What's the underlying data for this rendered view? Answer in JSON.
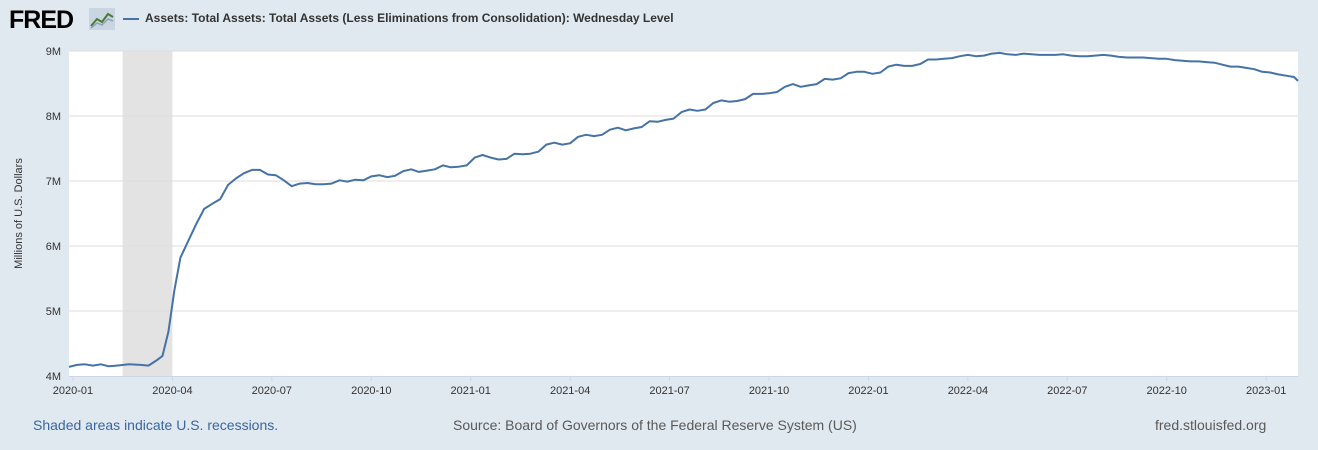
{
  "header": {
    "logo_text": "FRED",
    "logo_icon": "chart-line-icon",
    "legend_label": "Assets: Total Assets: Total Assets (Less Eliminations from Consolidation): Wednesday Level"
  },
  "footer": {
    "recession_note": "Shaded areas indicate U.S. recessions.",
    "source": "Source: Board of Governors of the Federal Reserve System (US)",
    "site": "fred.stlouisfed.org"
  },
  "colors": {
    "series": "#4572a7",
    "recession": "#e3e3e3",
    "background": "#e1e9f0",
    "plot": "#ffffff",
    "grid": "#dddddd"
  },
  "chart_data": {
    "type": "line",
    "title": "Assets: Total Assets: Total Assets (Less Eliminations from Consolidation): Wednesday Level",
    "xlabel": "",
    "ylabel": "Millions of U.S. Dollars",
    "ylim": [
      4,
      9
    ],
    "xlim": [
      2019.99,
      2023.08
    ],
    "grid": true,
    "yticks": [
      {
        "value": 4,
        "label": "4M"
      },
      {
        "value": 5,
        "label": "5M"
      },
      {
        "value": 6,
        "label": "6M"
      },
      {
        "value": 7,
        "label": "7M"
      },
      {
        "value": 8,
        "label": "8M"
      },
      {
        "value": 9,
        "label": "9M"
      }
    ],
    "xticks": [
      {
        "value": 2020.0,
        "label": "2020-01"
      },
      {
        "value": 2020.25,
        "label": "2020-04"
      },
      {
        "value": 2020.5,
        "label": "2020-07"
      },
      {
        "value": 2020.75,
        "label": "2020-10"
      },
      {
        "value": 2021.0,
        "label": "2021-01"
      },
      {
        "value": 2021.25,
        "label": "2021-04"
      },
      {
        "value": 2021.5,
        "label": "2021-07"
      },
      {
        "value": 2021.75,
        "label": "2021-10"
      },
      {
        "value": 2022.0,
        "label": "2022-01"
      },
      {
        "value": 2022.25,
        "label": "2022-04"
      },
      {
        "value": 2022.5,
        "label": "2022-07"
      },
      {
        "value": 2022.75,
        "label": "2022-10"
      },
      {
        "value": 2023.0,
        "label": "2023-01"
      }
    ],
    "recessions": [
      {
        "start": 2020.125,
        "end": 2020.25
      }
    ],
    "series": [
      {
        "name": "Assets: Total Assets: Total Assets (Less Eliminations from Consolidation): Wednesday Level",
        "points": [
          [
            2019.99,
            4.14
          ],
          [
            2020.01,
            4.17
          ],
          [
            2020.03,
            4.18
          ],
          [
            2020.05,
            4.16
          ],
          [
            2020.07,
            4.18
          ],
          [
            2020.09,
            4.15
          ],
          [
            2020.11,
            4.16
          ],
          [
            2020.14,
            4.18
          ],
          [
            2020.17,
            4.17
          ],
          [
            2020.19,
            4.16
          ],
          [
            2020.21,
            4.24
          ],
          [
            2020.225,
            4.31
          ],
          [
            2020.24,
            4.68
          ],
          [
            2020.255,
            5.32
          ],
          [
            2020.27,
            5.82
          ],
          [
            2020.29,
            6.08
          ],
          [
            2020.31,
            6.34
          ],
          [
            2020.33,
            6.57
          ],
          [
            2020.35,
            6.65
          ],
          [
            2020.37,
            6.72
          ],
          [
            2020.39,
            6.94
          ],
          [
            2020.41,
            7.04
          ],
          [
            2020.43,
            7.12
          ],
          [
            2020.45,
            7.17
          ],
          [
            2020.47,
            7.17
          ],
          [
            2020.49,
            7.1
          ],
          [
            2020.51,
            7.09
          ],
          [
            2020.53,
            7.01
          ],
          [
            2020.55,
            6.92
          ],
          [
            2020.57,
            6.96
          ],
          [
            2020.59,
            6.97
          ],
          [
            2020.61,
            6.95
          ],
          [
            2020.63,
            6.95
          ],
          [
            2020.65,
            6.96
          ],
          [
            2020.67,
            7.01
          ],
          [
            2020.69,
            6.99
          ],
          [
            2020.71,
            7.02
          ],
          [
            2020.73,
            7.01
          ],
          [
            2020.75,
            7.07
          ],
          [
            2020.77,
            7.09
          ],
          [
            2020.79,
            7.06
          ],
          [
            2020.81,
            7.08
          ],
          [
            2020.83,
            7.15
          ],
          [
            2020.85,
            7.18
          ],
          [
            2020.87,
            7.14
          ],
          [
            2020.89,
            7.16
          ],
          [
            2020.91,
            7.18
          ],
          [
            2020.93,
            7.24
          ],
          [
            2020.95,
            7.21
          ],
          [
            2020.97,
            7.22
          ],
          [
            2020.99,
            7.24
          ],
          [
            2021.01,
            7.36
          ],
          [
            2021.03,
            7.4
          ],
          [
            2021.05,
            7.36
          ],
          [
            2021.07,
            7.33
          ],
          [
            2021.09,
            7.34
          ],
          [
            2021.11,
            7.42
          ],
          [
            2021.13,
            7.41
          ],
          [
            2021.15,
            7.42
          ],
          [
            2021.17,
            7.45
          ],
          [
            2021.19,
            7.56
          ],
          [
            2021.21,
            7.59
          ],
          [
            2021.23,
            7.56
          ],
          [
            2021.25,
            7.58
          ],
          [
            2021.27,
            7.68
          ],
          [
            2021.29,
            7.71
          ],
          [
            2021.31,
            7.69
          ],
          [
            2021.33,
            7.71
          ],
          [
            2021.35,
            7.79
          ],
          [
            2021.37,
            7.82
          ],
          [
            2021.39,
            7.78
          ],
          [
            2021.41,
            7.81
          ],
          [
            2021.43,
            7.83
          ],
          [
            2021.45,
            7.92
          ],
          [
            2021.47,
            7.91
          ],
          [
            2021.49,
            7.94
          ],
          [
            2021.51,
            7.96
          ],
          [
            2021.53,
            8.06
          ],
          [
            2021.55,
            8.1
          ],
          [
            2021.57,
            8.08
          ],
          [
            2021.59,
            8.1
          ],
          [
            2021.61,
            8.2
          ],
          [
            2021.63,
            8.24
          ],
          [
            2021.65,
            8.22
          ],
          [
            2021.67,
            8.23
          ],
          [
            2021.69,
            8.26
          ],
          [
            2021.71,
            8.34
          ],
          [
            2021.73,
            8.34
          ],
          [
            2021.75,
            8.35
          ],
          [
            2021.77,
            8.37
          ],
          [
            2021.79,
            8.45
          ],
          [
            2021.81,
            8.49
          ],
          [
            2021.83,
            8.45
          ],
          [
            2021.85,
            8.47
          ],
          [
            2021.87,
            8.49
          ],
          [
            2021.89,
            8.57
          ],
          [
            2021.91,
            8.56
          ],
          [
            2021.93,
            8.58
          ],
          [
            2021.95,
            8.66
          ],
          [
            2021.97,
            8.68
          ],
          [
            2021.99,
            8.68
          ],
          [
            2022.01,
            8.65
          ],
          [
            2022.03,
            8.67
          ],
          [
            2022.05,
            8.76
          ],
          [
            2022.07,
            8.79
          ],
          [
            2022.09,
            8.77
          ],
          [
            2022.11,
            8.77
          ],
          [
            2022.13,
            8.8
          ],
          [
            2022.15,
            8.87
          ],
          [
            2022.17,
            8.87
          ],
          [
            2022.19,
            8.88
          ],
          [
            2022.21,
            8.89
          ],
          [
            2022.23,
            8.92
          ],
          [
            2022.25,
            8.94
          ],
          [
            2022.27,
            8.92
          ],
          [
            2022.29,
            8.93
          ],
          [
            2022.31,
            8.96
          ],
          [
            2022.33,
            8.97
          ],
          [
            2022.35,
            8.95
          ],
          [
            2022.37,
            8.94
          ],
          [
            2022.39,
            8.96
          ],
          [
            2022.41,
            8.95
          ],
          [
            2022.43,
            8.94
          ],
          [
            2022.45,
            8.94
          ],
          [
            2022.47,
            8.94
          ],
          [
            2022.49,
            8.95
          ],
          [
            2022.51,
            8.93
          ],
          [
            2022.53,
            8.92
          ],
          [
            2022.55,
            8.92
          ],
          [
            2022.57,
            8.93
          ],
          [
            2022.59,
            8.94
          ],
          [
            2022.61,
            8.93
          ],
          [
            2022.63,
            8.91
          ],
          [
            2022.65,
            8.9
          ],
          [
            2022.67,
            8.9
          ],
          [
            2022.69,
            8.9
          ],
          [
            2022.71,
            8.89
          ],
          [
            2022.73,
            8.88
          ],
          [
            2022.75,
            8.88
          ],
          [
            2022.77,
            8.86
          ],
          [
            2022.79,
            8.85
          ],
          [
            2022.81,
            8.84
          ],
          [
            2022.83,
            8.84
          ],
          [
            2022.85,
            8.83
          ],
          [
            2022.87,
            8.82
          ],
          [
            2022.89,
            8.79
          ],
          [
            2022.91,
            8.76
          ],
          [
            2022.93,
            8.76
          ],
          [
            2022.95,
            8.74
          ],
          [
            2022.97,
            8.72
          ],
          [
            2022.99,
            8.68
          ],
          [
            2023.01,
            8.67
          ],
          [
            2023.03,
            8.64
          ],
          [
            2023.05,
            8.62
          ],
          [
            2023.07,
            8.6
          ],
          [
            2023.08,
            8.54
          ]
        ]
      }
    ]
  }
}
